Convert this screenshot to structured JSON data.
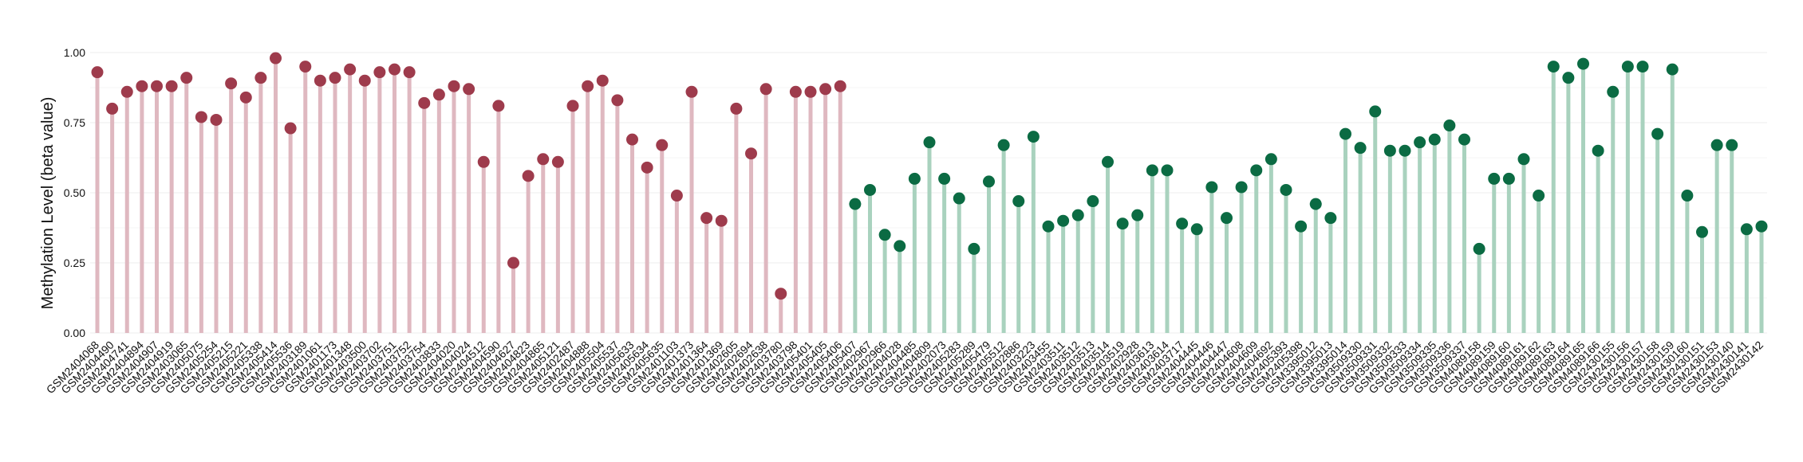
{
  "chart_data": {
    "type": "lollipop",
    "title": "",
    "xlabel": "",
    "ylabel": "Methylation Level (beta value)",
    "ylim": [
      0,
      1
    ],
    "yticks": [
      "0.00",
      "0.25",
      "0.50",
      "0.75",
      "1.00"
    ],
    "grid": true,
    "legend": "none",
    "groups": [
      {
        "color_point": "#9e3b4c",
        "color_stem": "#dfb8c0",
        "count": 51
      },
      {
        "color_point": "#0b6b43",
        "color_stem": "#a9d2be",
        "count": 62
      }
    ],
    "categories": [
      "GSM2404068",
      "GSM2404490",
      "GSM2404741",
      "GSM2404894",
      "GSM2404907",
      "GSM2404919",
      "GSM2403065",
      "GSM2405075",
      "GSM2405254",
      "GSM2405215",
      "GSM2405221",
      "GSM2405338",
      "GSM2405414",
      "GSM2405536",
      "GSM2403189",
      "GSM2401061",
      "GSM2401173",
      "GSM2401348",
      "GSM2403500",
      "GSM2403702",
      "GSM2403751",
      "GSM2403752",
      "GSM2403754",
      "GSM2403833",
      "GSM2404020",
      "GSM2404024",
      "GSM2404512",
      "GSM2404590",
      "GSM2404627",
      "GSM2404823",
      "GSM2404865",
      "GSM2405121",
      "GSM2402487",
      "GSM2404888",
      "GSM2405504",
      "GSM2405537",
      "GSM2405633",
      "GSM2405634",
      "GSM2405635",
      "GSM2401103",
      "GSM2401373",
      "GSM2401364",
      "GSM2401369",
      "GSM2402605",
      "GSM2402694",
      "GSM2402638",
      "GSM2403780",
      "GSM2403798",
      "GSM2405401",
      "GSM2405405",
      "GSM2405406",
      "GSM2405407",
      "GSM2402967",
      "GSM2402966",
      "GSM2404028",
      "GSM2404485",
      "GSM2404809",
      "GSM2402073",
      "GSM2405283",
      "GSM2405289",
      "GSM2405479",
      "GSM2405512",
      "GSM2402886",
      "GSM2403223",
      "GSM2403455",
      "GSM2403511",
      "GSM2403512",
      "GSM2403513",
      "GSM2403514",
      "GSM2403519",
      "GSM2402928",
      "GSM2403613",
      "GSM2403614",
      "GSM2403717",
      "GSM2404445",
      "GSM2404446",
      "GSM2404447",
      "GSM2404608",
      "GSM2404609",
      "GSM2404692",
      "GSM2405393",
      "GSM2405398",
      "GSM3395012",
      "GSM3395013",
      "GSM3395014",
      "GSM3509330",
      "GSM3509331",
      "GSM3509332",
      "GSM3509333",
      "GSM3509334",
      "GSM3509335",
      "GSM3509336",
      "GSM3509337",
      "GSM4089158",
      "GSM4089159",
      "GSM4089160",
      "GSM4089161",
      "GSM4089162",
      "GSM4089163",
      "GSM4089164",
      "GSM4089165",
      "GSM4089166",
      "GSM2430155",
      "GSM2430156",
      "GSM2430157",
      "GSM2430158",
      "GSM2430159",
      "GSM2430160",
      "GSM2430151",
      "GSM2430153",
      "GSM2430140",
      "GSM2430141",
      "GSM2430142"
    ],
    "values": [
      0.93,
      0.8,
      0.86,
      0.88,
      0.88,
      0.88,
      0.91,
      0.77,
      0.76,
      0.89,
      0.84,
      0.91,
      0.98,
      0.73,
      0.95,
      0.9,
      0.91,
      0.94,
      0.9,
      0.93,
      0.94,
      0.93,
      0.82,
      0.85,
      0.88,
      0.87,
      0.61,
      0.81,
      0.25,
      0.56,
      0.62,
      0.61,
      0.81,
      0.88,
      0.9,
      0.83,
      0.69,
      0.59,
      0.67,
      0.49,
      0.86,
      0.41,
      0.4,
      0.8,
      0.64,
      0.87,
      0.14,
      0.86,
      0.86,
      0.87,
      0.88,
      0.46,
      0.51,
      0.35,
      0.31,
      0.55,
      0.68,
      0.55,
      0.48,
      0.3,
      0.54,
      0.67,
      0.47,
      0.7,
      0.38,
      0.4,
      0.42,
      0.47,
      0.61,
      0.39,
      0.42,
      0.58,
      0.58,
      0.39,
      0.37,
      0.52,
      0.41,
      0.52,
      0.58,
      0.62,
      0.51,
      0.38,
      0.46,
      0.41,
      0.71,
      0.66,
      0.79,
      0.65,
      0.65,
      0.68,
      0.69,
      0.74,
      0.69,
      0.3,
      0.55,
      0.55,
      0.62,
      0.49,
      0.95,
      0.91,
      0.96,
      0.65,
      0.86,
      0.95,
      0.95,
      0.71,
      0.94,
      0.49,
      0.36,
      0.67,
      0.67,
      0.37,
      0.38
    ]
  }
}
